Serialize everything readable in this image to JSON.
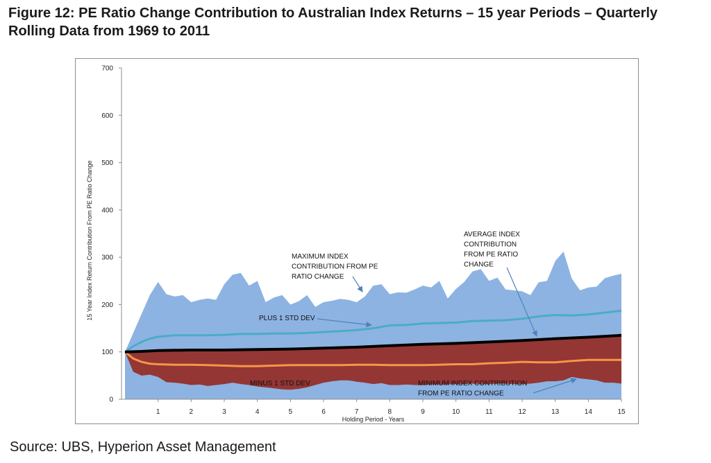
{
  "figure": {
    "title": "Figure 12: PE Ratio Change Contribution to Australian Index Returns – 15 year Periods – Quarterly Rolling Data from 1969 to 2011",
    "source": "Source: UBS, Hyperion Asset Management"
  },
  "chart_data": {
    "type": "area",
    "title": "",
    "xlabel": "Holding Period - Years",
    "ylabel": "15 Year Index Return Contribution From PE Ratio Change",
    "xlim": [
      0,
      15
    ],
    "ylim": [
      0,
      700
    ],
    "y_ticks": [
      "0",
      "100",
      "200",
      "300",
      "400",
      "500",
      "600",
      "700"
    ],
    "x_ticks": [
      "1",
      "2",
      "3",
      "4",
      "5",
      "6",
      "7",
      "8",
      "9",
      "10",
      "11",
      "12",
      "13",
      "14",
      "15"
    ],
    "grid": false,
    "legend": "none",
    "colors": {
      "max_area": "#8db3e2",
      "min_area": "#943634",
      "plus_std": "#4bacc6",
      "minus_std": "#f79646",
      "average": "#000000",
      "annotation": "#4f81bd"
    },
    "series": [
      {
        "name": "MAXIMUM INDEX CONTRIBUTION FROM PE RATIO CHANGE",
        "x": [
          0,
          0.25,
          0.5,
          0.75,
          1,
          1.25,
          1.5,
          1.75,
          2,
          2.25,
          2.5,
          2.75,
          3,
          3.25,
          3.5,
          3.75,
          4,
          4.25,
          4.5,
          4.75,
          5,
          5.25,
          5.5,
          5.75,
          6,
          6.25,
          6.5,
          6.75,
          7,
          7.25,
          7.5,
          7.75,
          8,
          8.25,
          8.5,
          8.75,
          9,
          9.25,
          9.5,
          9.75,
          10,
          10.25,
          10.5,
          10.75,
          11,
          11.25,
          11.5,
          11.75,
          12,
          12.25,
          12.5,
          12.75,
          13,
          13.25,
          13.5,
          13.75,
          14,
          14.25,
          14.5,
          14.75,
          15
        ],
        "values": [
          100,
          140,
          180,
          220,
          248,
          222,
          217,
          220,
          205,
          210,
          213,
          210,
          243,
          263,
          267,
          240,
          250,
          205,
          215,
          220,
          200,
          207,
          220,
          195,
          205,
          208,
          212,
          210,
          205,
          217,
          240,
          243,
          222,
          226,
          225,
          232,
          240,
          236,
          250,
          213,
          233,
          248,
          270,
          275,
          250,
          257,
          232,
          230,
          228,
          220,
          247,
          250,
          292,
          312,
          255,
          230,
          236,
          238,
          256,
          261,
          265
        ]
      },
      {
        "name": "PLUS 1 STD DEV",
        "x": [
          0,
          0.25,
          0.5,
          0.75,
          1,
          1.5,
          2,
          2.5,
          3,
          3.5,
          4,
          4.5,
          5,
          5.5,
          6,
          6.5,
          7,
          7.5,
          8,
          8.5,
          9,
          9.5,
          10,
          10.5,
          11,
          11.5,
          12,
          12.5,
          13,
          13.5,
          14,
          14.5,
          15
        ],
        "values": [
          100,
          112,
          121,
          128,
          132,
          135,
          135,
          135,
          136,
          138,
          138,
          139,
          139,
          140,
          142,
          144,
          146,
          150,
          156,
          157,
          160,
          161,
          162,
          165,
          166,
          167,
          170,
          175,
          178,
          177,
          179,
          183,
          187
        ]
      },
      {
        "name": "AVERAGE INDEX CONTRIBUTION FROM PE RATIO CHANGE",
        "x": [
          0,
          0.5,
          1,
          2,
          3,
          4,
          5,
          6,
          7,
          8,
          9,
          10,
          11,
          12,
          13,
          14,
          15
        ],
        "values": [
          100,
          101,
          103,
          104,
          104,
          105,
          106,
          108,
          110,
          113,
          116,
          118,
          121,
          124,
          128,
          131,
          135
        ]
      },
      {
        "name": "MINUS 1 STD DEV",
        "x": [
          0,
          0.25,
          0.5,
          0.75,
          1,
          1.5,
          2,
          2.5,
          3,
          3.5,
          4,
          4.5,
          5,
          5.5,
          6,
          6.5,
          7,
          7.5,
          8,
          8.5,
          9,
          9.5,
          10,
          10.5,
          11,
          11.5,
          12,
          12.5,
          13,
          13.5,
          14,
          14.5,
          15
        ],
        "values": [
          100,
          86,
          79,
          75,
          74,
          73,
          73,
          72,
          71,
          70,
          70,
          71,
          72,
          72,
          72,
          72,
          73,
          73,
          72,
          72,
          72,
          73,
          74,
          74,
          76,
          77,
          79,
          78,
          78,
          81,
          83,
          83,
          83
        ]
      },
      {
        "name": "MINIMUM INDEX CONTRIBUTION FROM PE RATIO CHANGE",
        "x": [
          0,
          0.25,
          0.5,
          0.75,
          1,
          1.25,
          1.5,
          1.75,
          2,
          2.25,
          2.5,
          2.75,
          3,
          3.25,
          3.5,
          3.75,
          4,
          4.25,
          4.5,
          4.75,
          5,
          5.25,
          5.5,
          5.75,
          6,
          6.25,
          6.5,
          6.75,
          7,
          7.25,
          7.5,
          7.75,
          8,
          8.25,
          8.5,
          8.75,
          9,
          9.25,
          9.5,
          9.75,
          10,
          10.25,
          10.5,
          10.75,
          11,
          11.25,
          11.5,
          11.75,
          12,
          12.25,
          12.5,
          12.75,
          13,
          13.25,
          13.5,
          13.75,
          14,
          14.25,
          14.5,
          14.75,
          15
        ],
        "values": [
          100,
          58,
          50,
          52,
          47,
          36,
          35,
          33,
          30,
          31,
          28,
          30,
          32,
          35,
          32,
          30,
          27,
          25,
          23,
          21,
          20,
          22,
          25,
          30,
          35,
          38,
          40,
          40,
          37,
          35,
          32,
          34,
          30,
          30,
          31,
          30,
          30,
          31,
          31,
          31,
          32,
          32,
          33,
          32,
          32,
          33,
          33,
          32,
          32,
          33,
          35,
          38,
          38,
          40,
          47,
          44,
          42,
          40,
          35,
          35,
          33
        ]
      }
    ],
    "annotations": [
      {
        "lines": [
          "MAXIMUM INDEX",
          "CONTRIBUTION FROM PE",
          "RATIO CHANGE"
        ]
      },
      {
        "lines": [
          "AVERAGE INDEX",
          "CONTRIBUTION",
          "FROM PE RATIO",
          "CHANGE"
        ]
      },
      {
        "lines": [
          "PLUS 1 STD DEV"
        ]
      },
      {
        "lines": [
          "MINUS 1 STD DEV"
        ]
      },
      {
        "lines": [
          "MINIMUM INDEX CONTRIBUTION",
          "FROM PE RATIO CHANGE"
        ]
      }
    ]
  }
}
